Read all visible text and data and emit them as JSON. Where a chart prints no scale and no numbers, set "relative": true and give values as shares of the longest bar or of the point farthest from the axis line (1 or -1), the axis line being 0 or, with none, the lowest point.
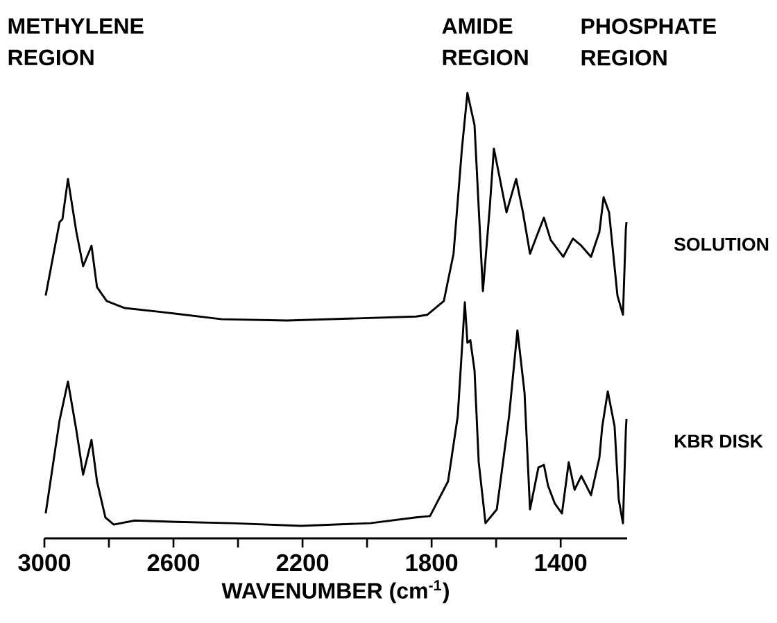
{
  "chart_data": {
    "type": "line",
    "relative": true,
    "xlabel": "WAVENUMBER  (cm$^{-1}$)",
    "xlim": [
      3000,
      1194
    ],
    "xticks": [
      3000,
      {
        "value": 2800,
        "label": null
      },
      2600,
      {
        "value": 2400,
        "label": null
      },
      2200,
      {
        "value": 2000,
        "label": null
      },
      1800,
      {
        "value": 1600,
        "label": null
      },
      1400
    ],
    "line_style": "solid",
    "annotations": [
      "METHYLENE REGION",
      "AMIDE REGION",
      "PHOSPHATE REGION"
    ],
    "series": [
      {
        "name": "SOLUTION",
        "color": "#000000",
        "x": [
          2996,
          2953,
          2944,
          2927,
          2901,
          2880,
          2854,
          2837,
          2807,
          2751,
          2635,
          2450,
          2248,
          1848,
          1813,
          1762,
          1732,
          1706,
          1689,
          1667,
          1641,
          1620,
          1607,
          1590,
          1568,
          1538,
          1517,
          1495,
          1474,
          1452,
          1431,
          1392,
          1362,
          1336,
          1306,
          1280,
          1267,
          1250,
          1224,
          1207,
          1198,
          1196
        ],
        "values": [
          0.545,
          0.71,
          0.717,
          0.807,
          0.688,
          0.611,
          0.657,
          0.564,
          0.533,
          0.517,
          0.508,
          0.492,
          0.489,
          0.498,
          0.502,
          0.533,
          0.639,
          0.875,
          1.0,
          0.928,
          0.555,
          0.741,
          0.875,
          0.813,
          0.732,
          0.807,
          0.732,
          0.639,
          0.679,
          0.72,
          0.67,
          0.632,
          0.673,
          0.657,
          0.632,
          0.688,
          0.766,
          0.732,
          0.545,
          0.502,
          0.695,
          0.71
        ]
      },
      {
        "name": "KBR DISK",
        "color": "#000000",
        "x": [
          2996,
          2953,
          2927,
          2901,
          2880,
          2854,
          2837,
          2811,
          2785,
          2720,
          2592,
          2420,
          2205,
          1990,
          1848,
          1805,
          1749,
          1719,
          1697,
          1689,
          1680,
          1667,
          1654,
          1633,
          1598,
          1560,
          1534,
          1512,
          1495,
          1469,
          1452,
          1439,
          1418,
          1396,
          1375,
          1357,
          1336,
          1306,
          1280,
          1271,
          1254,
          1233,
          1220,
          1207,
          1198,
          1196
        ],
        "values": [
          0.056,
          0.265,
          0.352,
          0.243,
          0.143,
          0.221,
          0.128,
          0.047,
          0.031,
          0.04,
          0.037,
          0.034,
          0.028,
          0.034,
          0.047,
          0.05,
          0.128,
          0.274,
          0.53,
          0.439,
          0.445,
          0.377,
          0.171,
          0.034,
          0.065,
          0.274,
          0.467,
          0.327,
          0.065,
          0.159,
          0.165,
          0.118,
          0.078,
          0.056,
          0.171,
          0.109,
          0.14,
          0.097,
          0.181,
          0.252,
          0.33,
          0.252,
          0.087,
          0.034,
          0.243,
          0.268
        ]
      }
    ]
  }
}
